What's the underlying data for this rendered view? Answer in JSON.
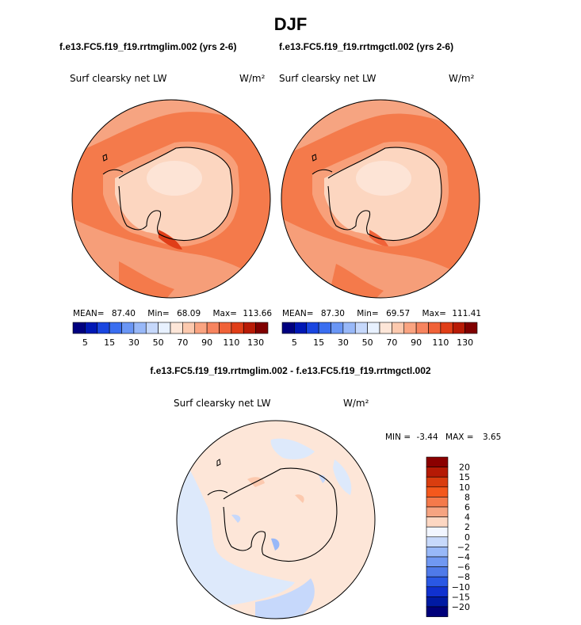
{
  "page_title": "DJF",
  "panels": [
    {
      "run": "f.e13.FC5.f19_f19.rrtmglim.002 (yrs 2-6)",
      "variable": "Surf clearsky net LW",
      "units": "W/m²",
      "stats": {
        "mean_label": "MEAN=",
        "mean": "87.40",
        "min_label": "Min=",
        "min": "68.09",
        "max_label": "Max=",
        "max": "113.66"
      }
    },
    {
      "run": "f.e13.FC5.f19_f19.rrtmgctl.002 (yrs 2-6)",
      "variable": "Surf clearsky net LW",
      "units": "W/m²",
      "stats": {
        "mean_label": "MEAN=",
        "mean": "87.30",
        "min_label": "Min=",
        "min": "69.57",
        "max_label": "Max=",
        "max": "111.41"
      }
    }
  ],
  "difference": {
    "title": "f.e13.FC5.f19_f19.rrtmglim.002 - f.e13.FC5.f19_f19.rrtmgctl.002",
    "variable": "Surf clearsky net LW",
    "units": "W/m²",
    "min_label": "MIN =",
    "min": "-3.44",
    "max_label": "MAX =",
    "max": "3.65"
  },
  "chart_data": [
    {
      "type": "heatmap",
      "projection": "south polar stereographic",
      "title": "Surf clearsky net LW",
      "subtitle": "f.e13.FC5.f19_f19.rrtmglim.002 (yrs 2-6)",
      "units": "W/m²",
      "colorbar_ticks": [
        "5",
        "15",
        "30",
        "50",
        "70",
        "90",
        "110",
        "130"
      ],
      "colorbar_levels": 16,
      "mean": 87.4,
      "min": 68.09,
      "max": 113.66
    },
    {
      "type": "heatmap",
      "projection": "south polar stereographic",
      "title": "Surf clearsky net LW",
      "subtitle": "f.e13.FC5.f19_f19.rrtmgctl.002 (yrs 2-6)",
      "units": "W/m²",
      "colorbar_ticks": [
        "5",
        "15",
        "30",
        "50",
        "70",
        "90",
        "110",
        "130"
      ],
      "colorbar_levels": 16,
      "mean": 87.3,
      "min": 69.57,
      "max": 111.41
    },
    {
      "type": "heatmap",
      "projection": "south polar stereographic",
      "title": "Surf clearsky net LW",
      "subtitle": "f.e13.FC5.f19_f19.rrtmglim.002 - f.e13.FC5.f19_f19.rrtmgctl.002",
      "units": "W/m²",
      "colorbar_ticks": [
        "20",
        "15",
        "10",
        "8",
        "6",
        "4",
        "2",
        "0",
        "−2",
        "−4",
        "−6",
        "−8",
        "−10",
        "−15",
        "−20"
      ],
      "min": -3.44,
      "max": 3.65
    }
  ],
  "colors": {
    "seq": [
      "#00007f",
      "#0018b5",
      "#1a46e0",
      "#3a6ef0",
      "#6a96f5",
      "#98b8f8",
      "#c6d8fb",
      "#e8f1ff",
      "#fde6d8",
      "#fcc9ae",
      "#faa481",
      "#f7845f",
      "#f06238",
      "#e03e18",
      "#b81b06",
      "#800000"
    ],
    "div": [
      "#8b0000",
      "#b51a05",
      "#d93d0f",
      "#f4581c",
      "#f47a4b",
      "#f6a481",
      "#fdd7c2",
      "#f2f6ff",
      "#c7d9fb",
      "#98b8f8",
      "#7098f2",
      "#4f7ae9",
      "#2a58e4",
      "#1031cf",
      "#001aa3",
      "#00007a"
    ]
  }
}
